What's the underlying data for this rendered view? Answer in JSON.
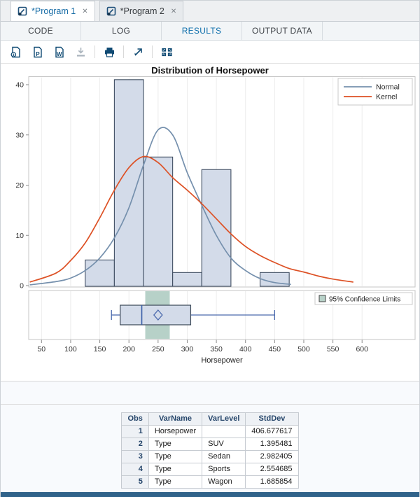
{
  "window": {
    "bottom_bar_color": "#30638a"
  },
  "icons": {
    "close": "✕"
  },
  "tabs": [
    {
      "label": "*Program 1",
      "active": true
    },
    {
      "label": "*Program 2",
      "active": false
    }
  ],
  "subtabs": [
    {
      "label": "CODE",
      "active": false
    },
    {
      "label": "LOG",
      "active": false
    },
    {
      "label": "RESULTS",
      "active": true
    },
    {
      "label": "OUTPUT DATA",
      "active": false
    }
  ],
  "toolbar": {
    "pdf_letter": "P",
    "word_letter": "W"
  },
  "chart_data": {
    "type": "histogram",
    "title": "Distribution of Horsepower",
    "xlabel": "Horsepower",
    "xlim": [
      28,
      691
    ],
    "xticks": [
      50,
      100,
      150,
      200,
      250,
      300,
      350,
      400,
      450,
      500,
      550,
      600
    ],
    "grid": "vertical",
    "histogram": {
      "ylim": [
        0,
        41.7
      ],
      "yticks": [
        0,
        10,
        20,
        30,
        40
      ],
      "bin_width": 50,
      "bins": [
        {
          "x0": 125,
          "x1": 175,
          "value": 5.1
        },
        {
          "x0": 175,
          "x1": 225,
          "value": 41.0
        },
        {
          "x0": 225,
          "x1": 275,
          "value": 25.6
        },
        {
          "x0": 275,
          "x1": 325,
          "value": 2.6
        },
        {
          "x0": 325,
          "x1": 375,
          "value": 23.1
        },
        {
          "x0": 425,
          "x1": 475,
          "value": 2.6
        }
      ],
      "bar_fill": "#d3dbe9",
      "bar_stroke": "#3f4d61"
    },
    "curves": [
      {
        "name": "Normal",
        "color": "#7590ad",
        "points": [
          [
            30,
            0.15
          ],
          [
            75,
            0.8
          ],
          [
            100,
            1.5
          ],
          [
            125,
            3
          ],
          [
            150,
            5.5
          ],
          [
            175,
            9.5
          ],
          [
            200,
            15.5
          ],
          [
            225,
            24
          ],
          [
            250,
            31
          ],
          [
            275,
            30
          ],
          [
            300,
            22.5
          ],
          [
            325,
            16
          ],
          [
            350,
            10
          ],
          [
            375,
            5.5
          ],
          [
            400,
            3
          ],
          [
            425,
            1.4
          ],
          [
            450,
            0.6
          ],
          [
            478,
            0.25
          ]
        ]
      },
      {
        "name": "Kernel",
        "color": "#dd5125",
        "points": [
          [
            30,
            0.7
          ],
          [
            75,
            2.5
          ],
          [
            100,
            5
          ],
          [
            125,
            8.5
          ],
          [
            150,
            13.5
          ],
          [
            175,
            19
          ],
          [
            200,
            23.5
          ],
          [
            225,
            25.7
          ],
          [
            250,
            24.5
          ],
          [
            275,
            21.5
          ],
          [
            300,
            19
          ],
          [
            325,
            16.3
          ],
          [
            350,
            13.3
          ],
          [
            375,
            10.3
          ],
          [
            400,
            7.8
          ],
          [
            425,
            6
          ],
          [
            450,
            4.6
          ],
          [
            475,
            3.4
          ],
          [
            500,
            2.7
          ],
          [
            525,
            1.9
          ],
          [
            550,
            1.3
          ],
          [
            585,
            0.7
          ]
        ]
      }
    ],
    "legend": {
      "position": "top-right",
      "entries": [
        "Normal",
        "Kernel"
      ]
    },
    "boxplot": {
      "legend": "95% Confidence Limits",
      "whisker_low": 170,
      "q1": 185,
      "median": 222,
      "mean": 250,
      "q3": 306,
      "whisker_high": 450,
      "ci_low": 228,
      "ci_high": 270,
      "band_color": "#b7d1c8",
      "box_fill": "#d3dbe9",
      "box_stroke": "#3a4656",
      "line_color": "#4a69ad",
      "median_color": "#3a5fa8"
    }
  },
  "table": {
    "headers": [
      "Obs",
      "VarName",
      "VarLevel",
      "StdDev"
    ],
    "rows": [
      [
        "1",
        "Horsepower",
        "",
        "406.677617"
      ],
      [
        "2",
        "Type",
        "SUV",
        "1.395481"
      ],
      [
        "3",
        "Type",
        "Sedan",
        "2.982405"
      ],
      [
        "4",
        "Type",
        "Sports",
        "2.554685"
      ],
      [
        "5",
        "Type",
        "Wagon",
        "1.685854"
      ]
    ]
  }
}
